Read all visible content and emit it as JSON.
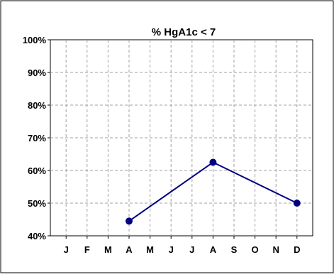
{
  "chart_data": {
    "type": "line",
    "title": "%  HgA1c < 7",
    "xlabel": "",
    "ylabel": "",
    "categories": [
      "J",
      "F",
      "M",
      "A",
      "M",
      "J",
      "J",
      "A",
      "S",
      "O",
      "N",
      "D"
    ],
    "y_ticks": [
      "40%",
      "50%",
      "60%",
      "70%",
      "80%",
      "90%",
      "100%"
    ],
    "ylim": [
      40,
      100
    ],
    "grid": true,
    "legend": "none",
    "series": [
      {
        "color": "#000080",
        "points": [
          {
            "category": "A",
            "value": 44.5
          },
          {
            "category": "A",
            "value": 62.5,
            "index": 7
          },
          {
            "category": "D",
            "value": 50
          }
        ],
        "values": [
          null,
          null,
          null,
          44.5,
          null,
          null,
          null,
          62.5,
          null,
          null,
          null,
          50
        ]
      }
    ]
  }
}
